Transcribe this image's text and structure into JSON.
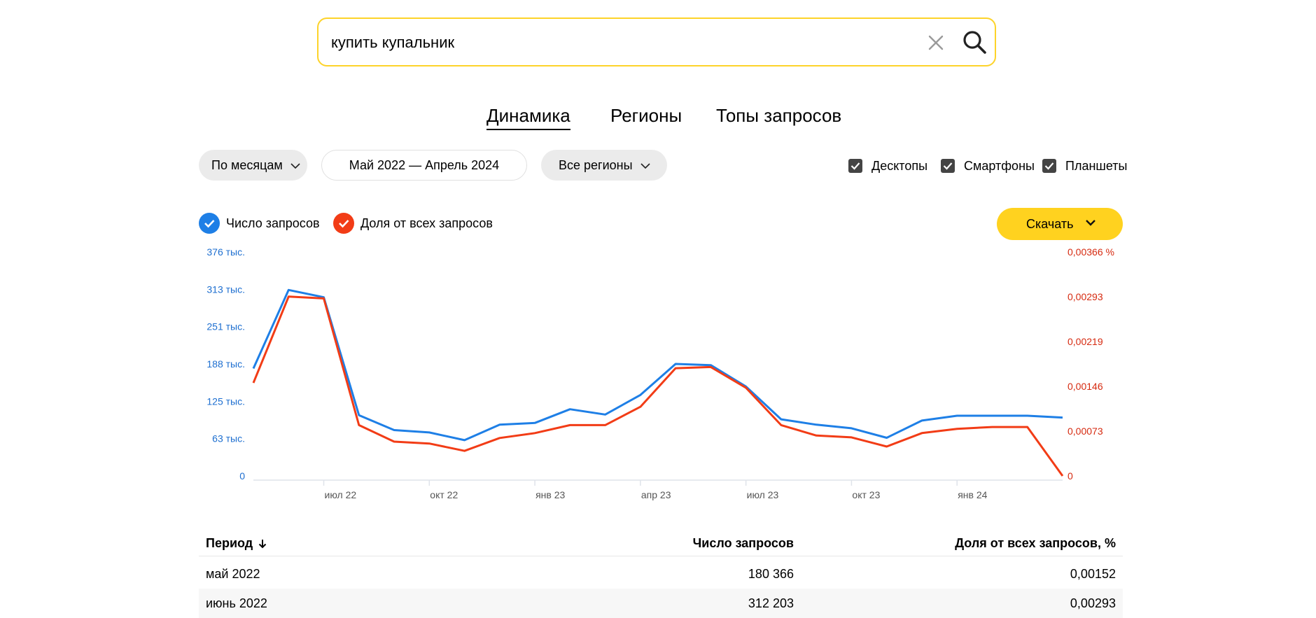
{
  "search": {
    "query": "купить купальник"
  },
  "tabs": [
    {
      "label": "Динамика",
      "active": true
    },
    {
      "label": "Регионы",
      "active": false
    },
    {
      "label": "Топы запросов",
      "active": false
    }
  ],
  "filters": {
    "grouping": "По месяцам",
    "period": "Май 2022 — Апрель 2024",
    "region": "Все регионы"
  },
  "devices": [
    {
      "label": "Десктопы",
      "checked": true
    },
    {
      "label": "Смартфоны",
      "checked": true
    },
    {
      "label": "Планшеты",
      "checked": true
    }
  ],
  "legend": [
    {
      "label": "Число запросов",
      "color": "#1e7fe6"
    },
    {
      "label": "Доля от всех запросов",
      "color": "#f23c16"
    }
  ],
  "download_label": "Скачать",
  "chart_data": {
    "type": "line",
    "x": [
      "2022-05",
      "2022-06",
      "2022-07",
      "2022-08",
      "2022-09",
      "2022-10",
      "2022-11",
      "2022-12",
      "2023-01",
      "2023-02",
      "2023-03",
      "2023-04",
      "2023-05",
      "2023-06",
      "2023-07",
      "2023-08",
      "2023-09",
      "2023-10",
      "2023-11",
      "2023-12",
      "2024-01",
      "2024-02",
      "2024-03",
      "2024-04"
    ],
    "x_ticks": [
      "июл 22",
      "окт 22",
      "янв 23",
      "апр 23",
      "июл 23",
      "окт 23",
      "янв 24"
    ],
    "y_left_ticks": [
      "0",
      "63 тыс.",
      "125 тыс.",
      "188 тыс.",
      "251 тыс.",
      "313 тыс.",
      "376 тыс."
    ],
    "y_right_ticks": [
      "0",
      "0,00073",
      "0,00146",
      "0,00219",
      "0,00293",
      "0,00366 %"
    ],
    "ylim_left": [
      0,
      376000
    ],
    "ylim_right": [
      0,
      0.00366
    ],
    "series": [
      {
        "name": "Число запросов",
        "axis": "left",
        "color": "#1e7fe6",
        "values": [
          180366,
          312203,
          300000,
          102000,
          77000,
          73000,
          60000,
          86000,
          89000,
          112000,
          103000,
          136000,
          188000,
          186000,
          150000,
          95000,
          86000,
          80000,
          64000,
          93000,
          101000,
          101000,
          101000,
          98000
        ]
      },
      {
        "name": "Доля от всех запросов",
        "axis": "right",
        "color": "#f23c16",
        "values": [
          0.00152,
          0.00293,
          0.0029,
          0.00083,
          0.00056,
          0.00053,
          0.00041,
          0.00062,
          0.0007,
          0.00083,
          0.00083,
          0.00113,
          0.00176,
          0.00178,
          0.00144,
          0.00083,
          0.00066,
          0.00063,
          0.00048,
          0.0007,
          0.00077,
          0.0008,
          0.0008,
          0.0
        ]
      }
    ],
    "grid": false
  },
  "table": {
    "headers": {
      "period": "Период",
      "count": "Число запросов",
      "share": "Доля от всех запросов, %"
    },
    "rows": [
      {
        "period": "май 2022",
        "count": "180 366",
        "share": "0,00152"
      },
      {
        "period": "июнь 2022",
        "count": "312 203",
        "share": "0,00293"
      }
    ]
  }
}
